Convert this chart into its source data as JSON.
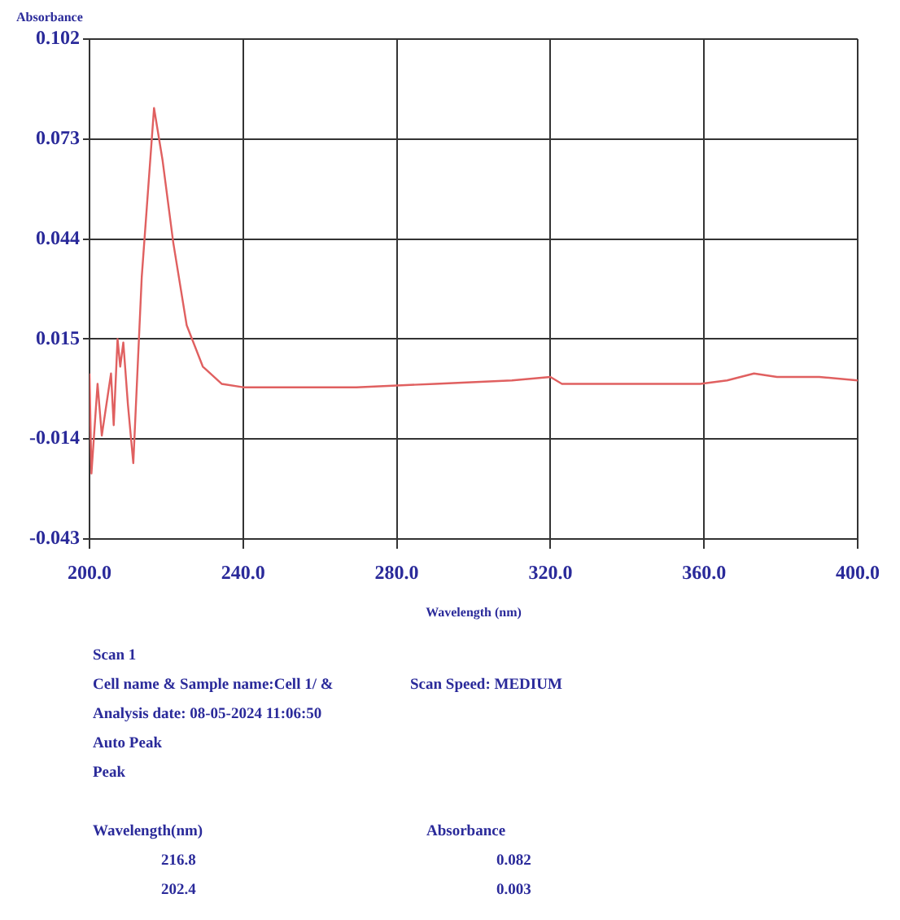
{
  "chart_data": {
    "type": "line",
    "ylabel": "Absorbance",
    "xlabel": "Wavelength (nm)",
    "x": [
      200,
      200.5,
      202.1,
      203.2,
      205.6,
      206.3,
      207.3,
      208.0,
      208.8,
      210.0,
      211.4,
      213.6,
      216.8,
      219,
      221.8,
      225.3,
      229.5,
      234.4,
      240,
      249,
      261,
      269.5,
      290,
      310,
      320,
      323,
      329.7,
      345,
      359,
      366,
      373,
      379,
      390,
      400
    ],
    "series": [
      {
        "color": "#e06060",
        "values": [
          0.005,
          -0.024,
          0.002,
          -0.013,
          0.005,
          -0.01,
          0.015,
          0.007,
          0.014,
          -0.004,
          -0.021,
          0.033,
          0.082,
          0.067,
          0.043,
          0.019,
          0.007,
          0.002,
          0.001,
          0.001,
          0.001,
          0.001,
          0.002,
          0.003,
          0.004,
          0.002,
          0.002,
          0.002,
          0.002,
          0.003,
          0.005,
          0.004,
          0.004,
          0.003
        ]
      }
    ],
    "xlim": [
      200,
      400
    ],
    "xticks": [
      {
        "value": 200,
        "label": "200.0"
      },
      {
        "value": 240,
        "label": "240.0"
      },
      {
        "value": 280,
        "label": "280.0"
      },
      {
        "value": 320,
        "label": "320.0"
      },
      {
        "value": 360,
        "label": "360.0"
      },
      {
        "value": 400,
        "label": "400.0"
      }
    ],
    "ylim": [
      -0.043,
      0.102
    ],
    "yticks": [
      -0.043,
      -0.014,
      0.015,
      0.044,
      0.073,
      0.102
    ],
    "grid": true,
    "legend": false,
    "marker": "none",
    "line_style": "solid",
    "annotations": [
      "Scan 1",
      "Cell name & Sample name:Cell 1/ &",
      "Scan Speed: MEDIUM",
      "Analysis date: 08-05-2024 11:06:50",
      "Auto Peak",
      "Peak",
      "Wavelength(nm)",
      "Absorbance",
      "216.8",
      "0.082",
      "202.4",
      "0.003"
    ]
  }
}
